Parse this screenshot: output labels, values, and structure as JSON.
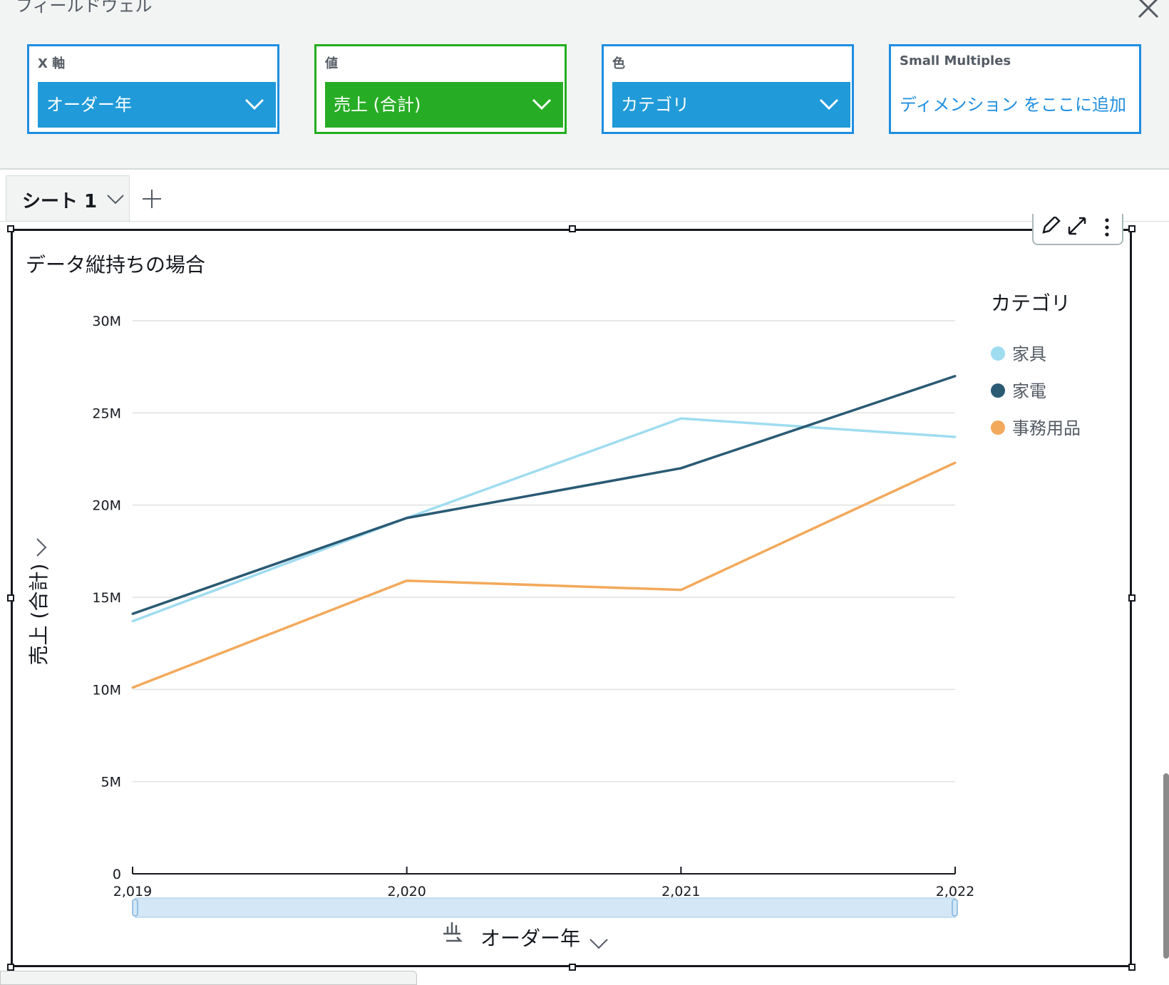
{
  "field_wells": {
    "panel_title": "フィールドウェル",
    "x_axis": {
      "label": "X 軸",
      "field": "オーダー年"
    },
    "value": {
      "label": "値",
      "field": "売上 (合計)"
    },
    "color": {
      "label": "色",
      "field": "カテゴリ"
    },
    "small_multiples": {
      "label": "Small Multiples",
      "placeholder": "ディメンション をここに追加"
    }
  },
  "sheets": {
    "tabs": [
      {
        "label": "シート 1"
      }
    ]
  },
  "colors": {
    "well_blue": "#1f8ee0",
    "well_green": "#23ad1f",
    "link_blue": "#1f8ee0"
  },
  "chart_data": {
    "type": "line",
    "title": "データ縦持ちの場合",
    "xlabel": "オーダー年",
    "ylabel": "売上 (合計)",
    "x": [
      "2,019",
      "2,020",
      "2,021",
      "2,022"
    ],
    "y_ticks": [
      "0",
      "5M",
      "10M",
      "15M",
      "20M",
      "25M",
      "30M"
    ],
    "ylim": [
      0,
      30000000
    ],
    "grid": true,
    "legend_title": "カテゴリ",
    "legend_position": "right",
    "series": [
      {
        "name": "家具",
        "color": "#9fdcf0",
        "values": [
          13700000,
          19300000,
          24700000,
          23700000
        ]
      },
      {
        "name": "家電",
        "color": "#2a5a74",
        "values": [
          14100000,
          19300000,
          22000000,
          27000000
        ]
      },
      {
        "name": "事務用品",
        "color": "#f2a95b",
        "values": [
          10100000,
          15900000,
          15400000,
          22300000
        ]
      }
    ]
  }
}
